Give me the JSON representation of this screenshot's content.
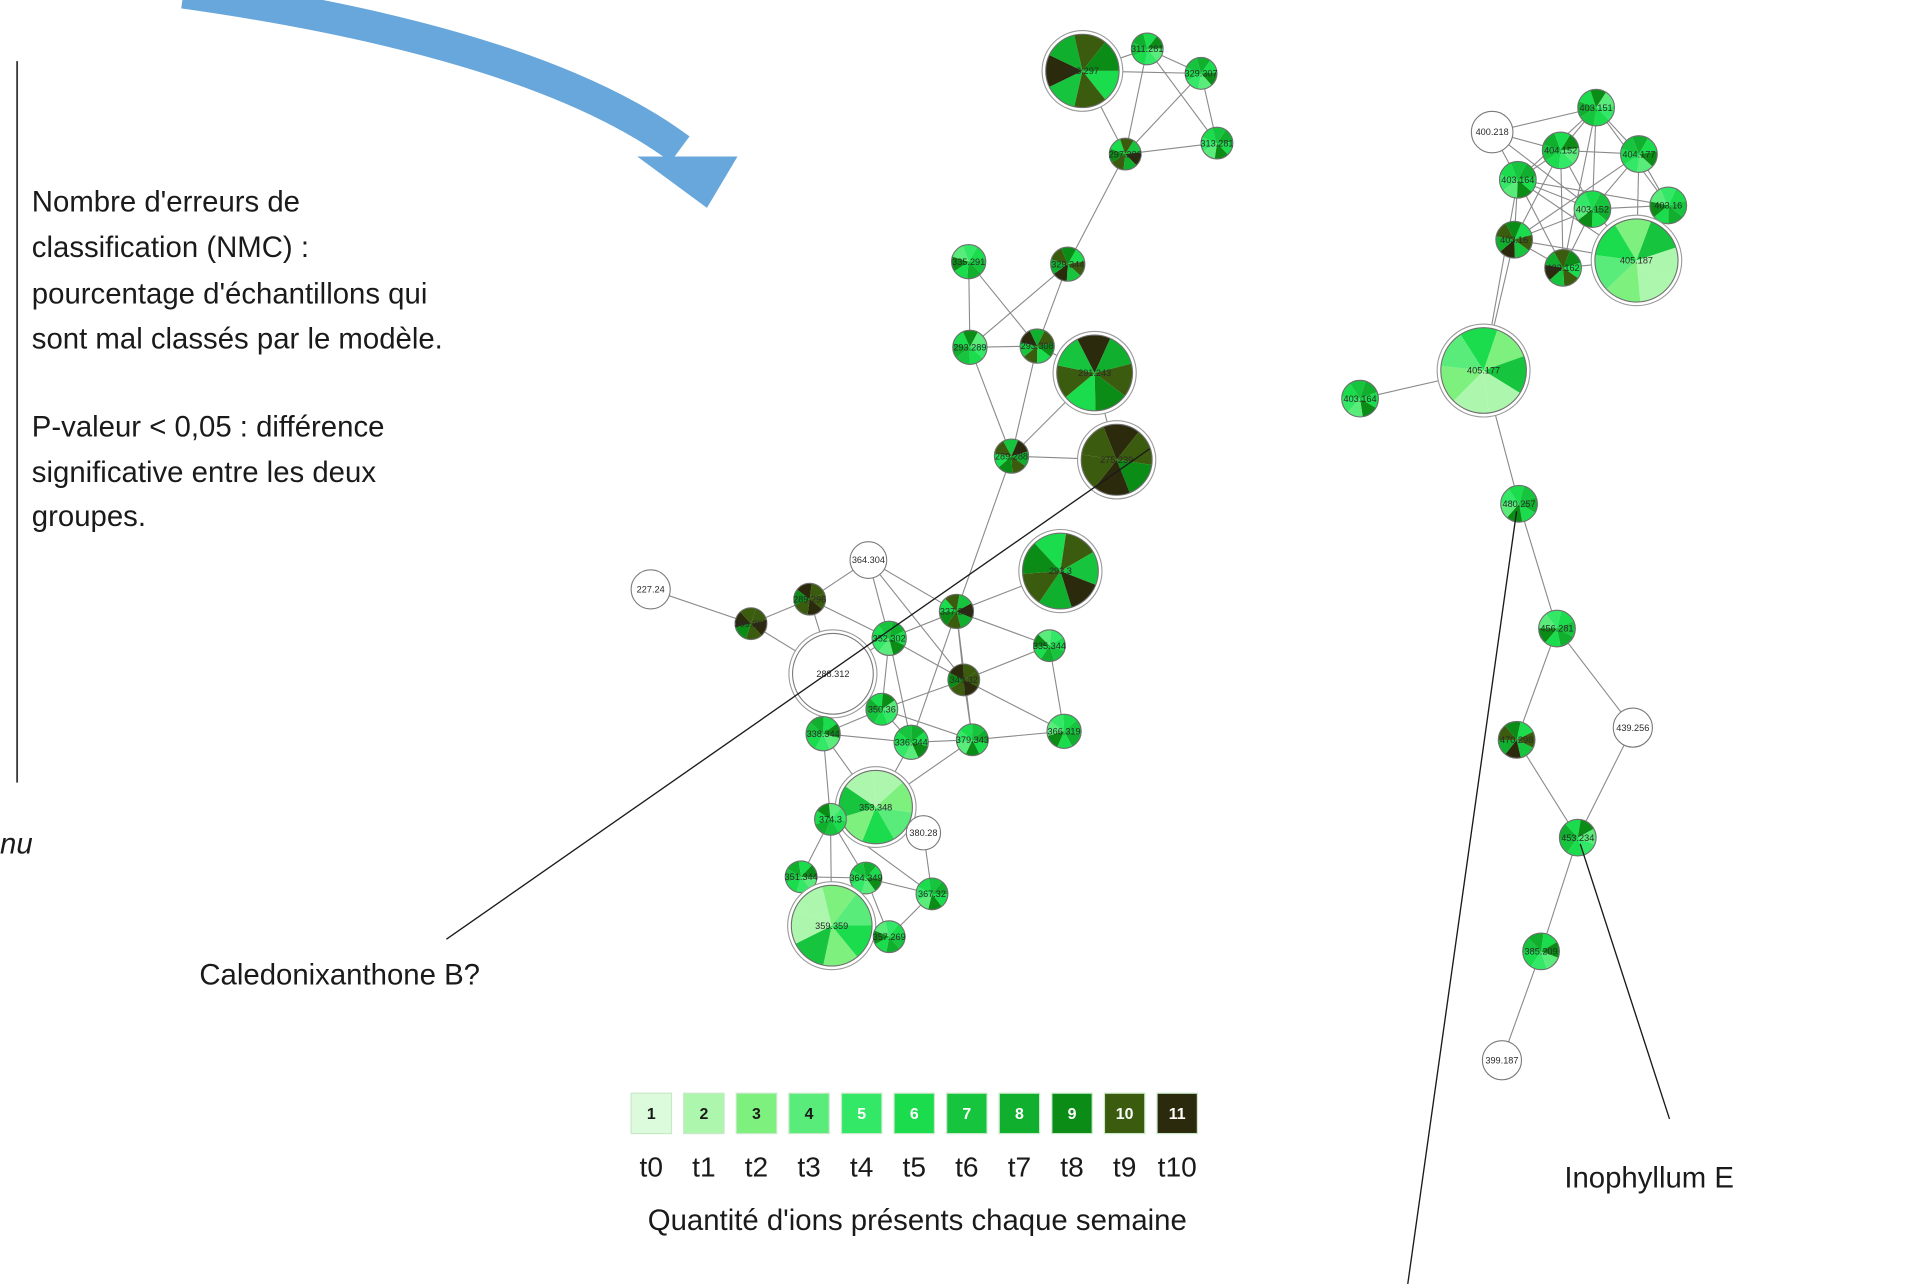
{
  "info_box": {
    "nmc_lines": [
      "Nombre d'erreurs de",
      "classification (NMC) :",
      "pourcentage d'échantillons qui",
      "sont mal classés par le modèle."
    ],
    "pvalue_lines": [
      "P-valeur < 0,05 : différence",
      "significative entre les deux",
      "groupes."
    ]
  },
  "cut_off_text": "nu",
  "annotations": {
    "caledonixanthone": "Caledonixanthone B?",
    "inophyllum": "Inophyllum E"
  },
  "arrow_color": "#68a7db",
  "network": {
    "nodes": [
      {
        "id": "A1",
        "label": "313.297"
      },
      {
        "id": "A2",
        "label": "311.281"
      },
      {
        "id": "A3",
        "label": "329.307"
      },
      {
        "id": "A4",
        "label": "313.281"
      },
      {
        "id": "A5",
        "label": "297.286"
      },
      {
        "id": "C1",
        "label": "335.291"
      },
      {
        "id": "C2",
        "label": "329.344"
      },
      {
        "id": "C3",
        "label": "293.289"
      },
      {
        "id": "C4",
        "label": "293.308"
      },
      {
        "id": "C5",
        "label": "291.243"
      },
      {
        "id": "C6",
        "label": "289.288"
      },
      {
        "id": "C7",
        "label": "275.239"
      },
      {
        "id": "D0",
        "label": "227.24"
      },
      {
        "id": "D1",
        "label": "309.267"
      },
      {
        "id": "D2",
        "label": "289.296"
      },
      {
        "id": "D3",
        "label": "364.304"
      },
      {
        "id": "D4",
        "label": "288.312"
      },
      {
        "id": "D5",
        "label": "352.302"
      },
      {
        "id": "D6",
        "label": "337.296"
      },
      {
        "id": "D7",
        "label": "293.3"
      },
      {
        "id": "D8",
        "label": "335.344"
      },
      {
        "id": "D9",
        "label": "349.32"
      },
      {
        "id": "D10",
        "label": "350.36"
      },
      {
        "id": "D11",
        "label": "338.344"
      },
      {
        "id": "D12",
        "label": "336.344"
      },
      {
        "id": "D13",
        "label": "379.343"
      },
      {
        "id": "D14",
        "label": "366.319"
      },
      {
        "id": "D15",
        "label": "353.348"
      },
      {
        "id": "D16",
        "label": "374.3"
      },
      {
        "id": "D17",
        "label": "380.28"
      },
      {
        "id": "D18",
        "label": "351.344"
      },
      {
        "id": "D19",
        "label": "364.349"
      },
      {
        "id": "D20",
        "label": "367.32"
      },
      {
        "id": "D21",
        "label": "359.359"
      },
      {
        "id": "D22",
        "label": "357.269"
      },
      {
        "id": "R1",
        "label": "400.218"
      },
      {
        "id": "R2",
        "label": "403.151"
      },
      {
        "id": "R3",
        "label": "404.152"
      },
      {
        "id": "R4",
        "label": "404.177"
      },
      {
        "id": "R5",
        "label": "403.164"
      },
      {
        "id": "R6",
        "label": "403.152"
      },
      {
        "id": "R7",
        "label": "403.16"
      },
      {
        "id": "R8",
        "label": "403.16"
      },
      {
        "id": "R9",
        "label": "403.162"
      },
      {
        "id": "R10",
        "label": "405.187"
      },
      {
        "id": "R11",
        "label": "405.177"
      },
      {
        "id": "R12",
        "label": "403.164"
      },
      {
        "id": "R13",
        "label": "480.257"
      },
      {
        "id": "R14",
        "label": "456.281"
      },
      {
        "id": "R15",
        "label": "470.298"
      },
      {
        "id": "R16",
        "label": "439.256"
      },
      {
        "id": "R17",
        "label": "453.234"
      },
      {
        "id": "R18",
        "label": "385.209"
      },
      {
        "id": "R19",
        "label": "399.187"
      }
    ]
  },
  "legend": {
    "levels": [
      {
        "value": "1",
        "period": "t0",
        "color": "#dcfadc"
      },
      {
        "value": "2",
        "period": "t1",
        "color": "#adf6ad"
      },
      {
        "value": "3",
        "period": "t2",
        "color": "#7ef07e"
      },
      {
        "value": "4",
        "period": "t3",
        "color": "#5aec7a"
      },
      {
        "value": "5",
        "period": "t4",
        "color": "#33e866"
      },
      {
        "value": "6",
        "period": "t5",
        "color": "#1bdc4c"
      },
      {
        "value": "7",
        "period": "t6",
        "color": "#16c43d"
      },
      {
        "value": "8",
        "period": "t7",
        "color": "#10b02e"
      },
      {
        "value": "9",
        "period": "t8",
        "color": "#0b8c16"
      },
      {
        "value": "10",
        "period": "t9",
        "color": "#3b5c0e"
      },
      {
        "value": "11",
        "period": "t10",
        "color": "#2b2a0d"
      }
    ],
    "caption": "Quantité d'ions présents chaque semaine"
  }
}
